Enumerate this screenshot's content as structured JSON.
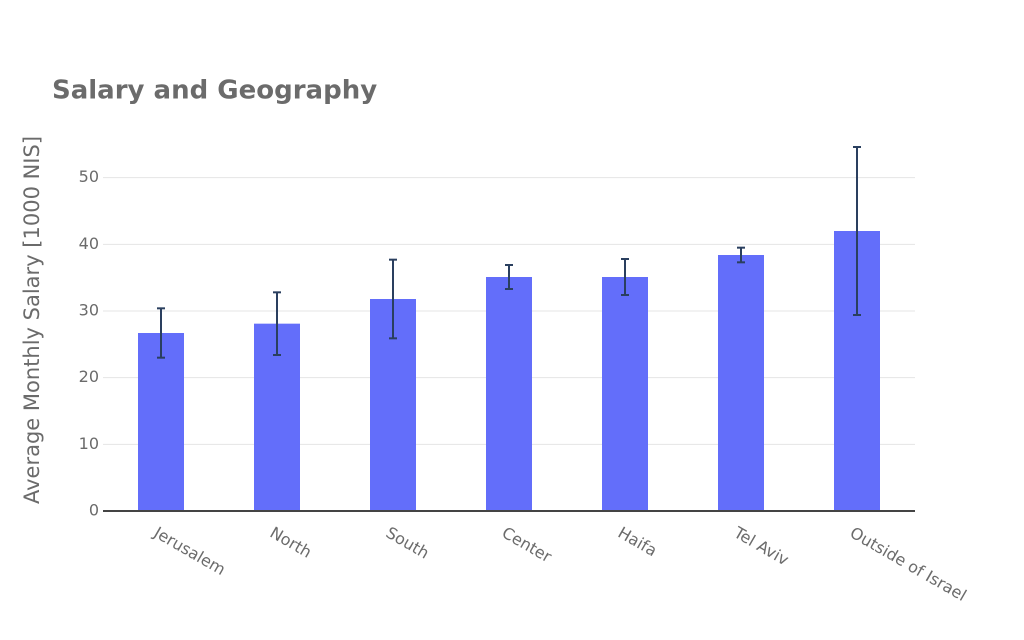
{
  "chart_data": {
    "type": "bar",
    "title": "Salary and Geography",
    "y_label": "Average Monthly Salary [1000 NIS]",
    "categories": [
      "Jerusalem",
      "North",
      "South",
      "Center",
      "Haifa",
      "Tel Aviv",
      "Outside of Israel"
    ],
    "values": [
      26.7,
      28.1,
      31.8,
      35.1,
      35.1,
      38.4,
      42.0
    ],
    "errors": [
      3.7,
      4.7,
      5.9,
      1.8,
      2.7,
      1.1,
      12.6
    ],
    "color": "#636efa",
    "error_color": "#2a3f5f",
    "ylim": [
      0,
      57.6
    ],
    "yticks": [
      0,
      10,
      20,
      30,
      40,
      50
    ],
    "grid": true
  }
}
